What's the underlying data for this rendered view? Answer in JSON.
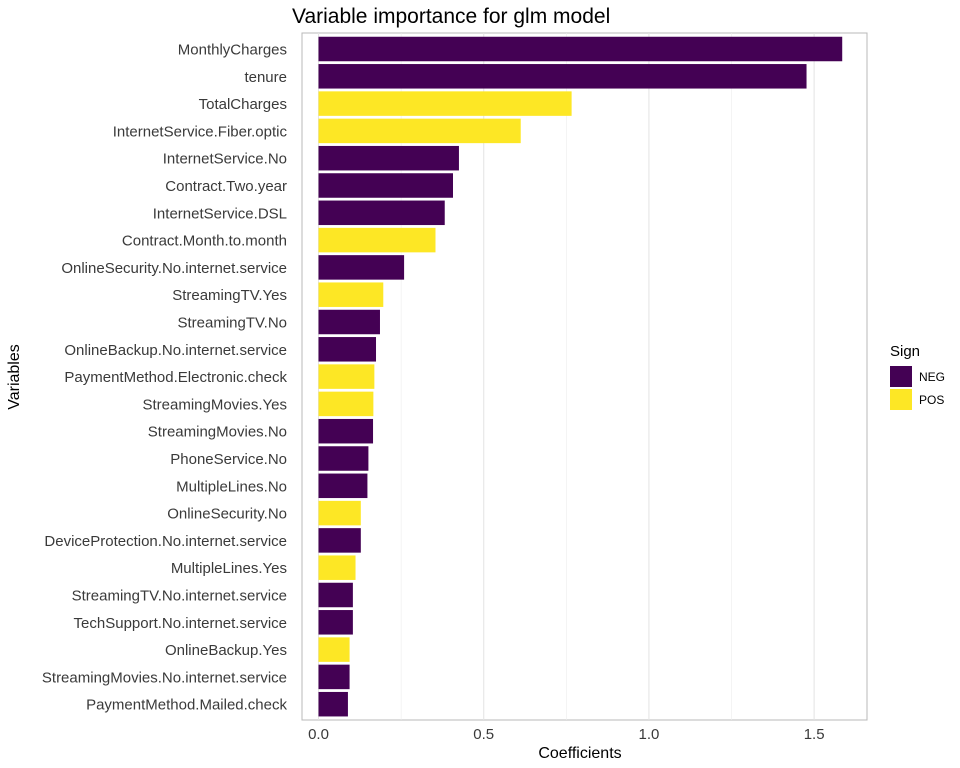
{
  "chart_data": {
    "type": "bar",
    "orientation": "horizontal",
    "title": "Variable importance for glm model",
    "xlabel": "Coefficients",
    "ylabel": "Variables",
    "xlim": [
      -0.05,
      1.66
    ],
    "xticks": [
      0.0,
      0.5,
      1.0,
      1.5
    ],
    "xtick_labels": [
      "0.0",
      "0.5",
      "1.0",
      "1.5"
    ],
    "grid": true,
    "legend": {
      "title": "Sign",
      "placement": "right",
      "entries": [
        {
          "label": "NEG",
          "color": "#440154"
        },
        {
          "label": "POS",
          "color": "#FDE725"
        }
      ]
    },
    "categories": [
      "MonthlyCharges",
      "tenure",
      "TotalCharges",
      "InternetService.Fiber.optic",
      "InternetService.No",
      "Contract.Two.year",
      "InternetService.DSL",
      "Contract.Month.to.month",
      "OnlineSecurity.No.internet.service",
      "StreamingTV.Yes",
      "StreamingTV.No",
      "OnlineBackup.No.internet.service",
      "PaymentMethod.Electronic.check",
      "StreamingMovies.Yes",
      "StreamingMovies.No",
      "PhoneService.No",
      "MultipleLines.No",
      "OnlineSecurity.No",
      "DeviceProtection.No.internet.service",
      "MultipleLines.Yes",
      "StreamingTV.No.internet.service",
      "TechSupport.No.internet.service",
      "OnlineBackup.Yes",
      "StreamingMovies.No.internet.service",
      "PaymentMethod.Mailed.check"
    ],
    "values": [
      1.585,
      1.477,
      0.766,
      0.612,
      0.425,
      0.407,
      0.382,
      0.354,
      0.259,
      0.196,
      0.186,
      0.174,
      0.169,
      0.166,
      0.165,
      0.151,
      0.148,
      0.128,
      0.128,
      0.112,
      0.104,
      0.104,
      0.094,
      0.094,
      0.089
    ],
    "signs": [
      "NEG",
      "NEG",
      "POS",
      "POS",
      "NEG",
      "NEG",
      "NEG",
      "POS",
      "NEG",
      "POS",
      "NEG",
      "NEG",
      "POS",
      "POS",
      "NEG",
      "NEG",
      "NEG",
      "POS",
      "NEG",
      "POS",
      "NEG",
      "NEG",
      "POS",
      "NEG",
      "NEG"
    ]
  }
}
